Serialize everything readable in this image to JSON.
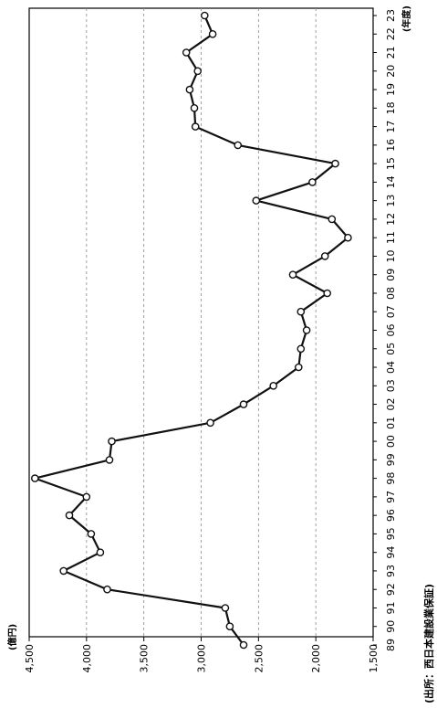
{
  "chart_data": {
    "type": "line",
    "title": "",
    "xlabel": "",
    "ylabel": "",
    "y_unit_label": "(億円)",
    "x_unit_label": "(年度)",
    "source_note": "(出所：西日本建設業保証)",
    "x": [
      "89",
      "90",
      "91",
      "92",
      "93",
      "94",
      "95",
      "96",
      "97",
      "98",
      "99",
      "00",
      "01",
      "02",
      "03",
      "04",
      "05",
      "06",
      "07",
      "08",
      "09",
      "10",
      "11",
      "12",
      "13",
      "14",
      "15",
      "16",
      "17",
      "18",
      "19",
      "20",
      "21",
      "22",
      "23"
    ],
    "y_ticks": [
      "1,500",
      "2,000",
      "2,500",
      "3,000",
      "3,500",
      "4,000",
      "4,500"
    ],
    "ylim": [
      1500,
      4500
    ],
    "grid": true,
    "series": [
      {
        "name": "",
        "values": [
          2630,
          2750,
          2790,
          3820,
          4200,
          3880,
          3960,
          4150,
          4000,
          4450,
          3800,
          3780,
          2920,
          2630,
          2370,
          2150,
          2130,
          2080,
          2130,
          1900,
          2200,
          1920,
          1720,
          1860,
          2520,
          2030,
          1830,
          2680,
          3050,
          3060,
          3100,
          3030,
          3130,
          2900,
          2970
        ]
      }
    ]
  }
}
